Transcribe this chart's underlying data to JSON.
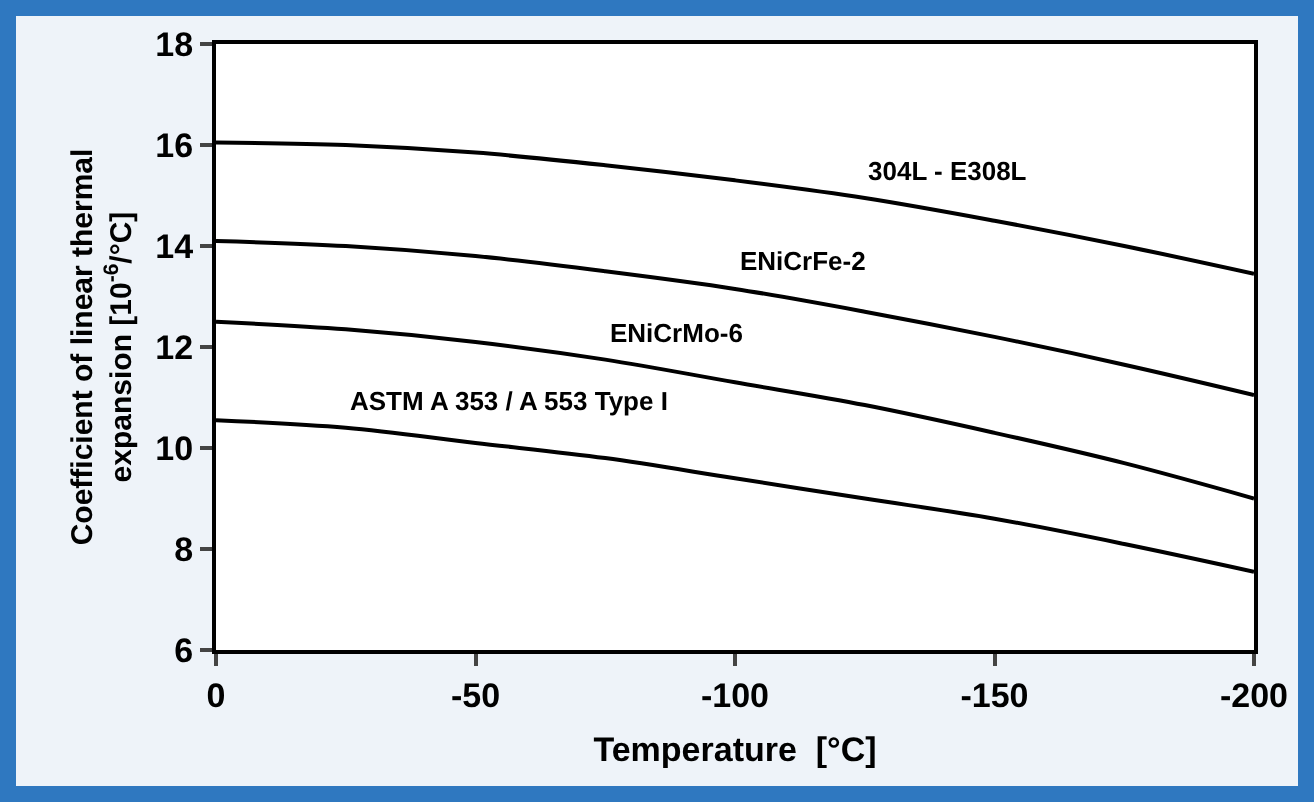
{
  "chart_data": {
    "type": "line",
    "xlabel": "Temperature  [°C]",
    "ylabel": "Coefficient of linear thermal\nexpansion [10$^{-6}$/°C]",
    "x": [
      0,
      -25,
      -50,
      -75,
      -100,
      -125,
      -150,
      -175,
      -200
    ],
    "series": [
      {
        "name": "304L - E308L",
        "color": "#000000",
        "values": [
          16.05,
          16.0,
          15.85,
          15.6,
          15.3,
          14.95,
          14.5,
          14.0,
          13.45
        ]
      },
      {
        "name": "ENiCrFe-2",
        "color": "#000000",
        "values": [
          14.1,
          14.0,
          13.8,
          13.5,
          13.15,
          12.7,
          12.2,
          11.65,
          11.05
        ]
      },
      {
        "name": "ENiCrMo-6",
        "color": "#000000",
        "values": [
          12.5,
          12.35,
          12.1,
          11.75,
          11.3,
          10.85,
          10.3,
          9.7,
          9.0
        ]
      },
      {
        "name": "ASTM A 353 / A 553 Type I",
        "color": "#000000",
        "values": [
          10.55,
          10.4,
          10.1,
          9.8,
          9.4,
          9.0,
          8.6,
          8.1,
          7.55
        ]
      }
    ],
    "xlim": [
      0,
      -200
    ],
    "xticks": [
      0,
      -50,
      -100,
      -150,
      -200
    ],
    "ylim": [
      6,
      18
    ],
    "yticks": [
      6,
      8,
      10,
      12,
      14,
      16,
      18
    ],
    "grid": false,
    "legend": false,
    "marker": "none",
    "line_style": "solid"
  }
}
